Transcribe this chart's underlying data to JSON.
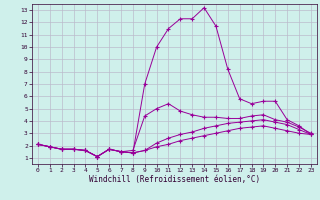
{
  "xlabel": "Windchill (Refroidissement éolien,°C)",
  "background_color": "#cff0eb",
  "line_color": "#990099",
  "grid_color": "#bbbbcc",
  "xlim": [
    -0.5,
    23.5
  ],
  "ylim": [
    0.5,
    13.5
  ],
  "xticks": [
    0,
    1,
    2,
    3,
    4,
    5,
    6,
    7,
    8,
    9,
    10,
    11,
    12,
    13,
    14,
    15,
    16,
    17,
    18,
    19,
    20,
    21,
    22,
    23
  ],
  "yticks": [
    1,
    2,
    3,
    4,
    5,
    6,
    7,
    8,
    9,
    10,
    11,
    12,
    13
  ],
  "curves": [
    {
      "x": [
        0,
        1,
        2,
        3,
        4,
        5,
        6,
        7,
        8,
        9,
        10,
        11,
        12,
        13,
        14,
        15,
        16,
        17,
        18,
        19,
        20,
        21,
        22,
        23
      ],
      "y": [
        2.1,
        1.9,
        1.7,
        1.7,
        1.6,
        1.1,
        1.7,
        1.5,
        1.4,
        7.0,
        10.0,
        11.5,
        12.3,
        12.3,
        13.2,
        11.7,
        8.2,
        5.8,
        5.4,
        5.6,
        5.6,
        4.1,
        3.6,
        2.9
      ]
    },
    {
      "x": [
        0,
        1,
        2,
        3,
        4,
        5,
        6,
        7,
        8,
        9,
        10,
        11,
        12,
        13,
        14,
        15,
        16,
        17,
        18,
        19,
        20,
        21,
        22,
        23
      ],
      "y": [
        2.1,
        1.9,
        1.7,
        1.7,
        1.6,
        1.1,
        1.7,
        1.5,
        1.6,
        4.4,
        5.0,
        5.4,
        4.8,
        4.5,
        4.3,
        4.3,
        4.2,
        4.2,
        4.4,
        4.5,
        4.1,
        3.9,
        3.5,
        3.0
      ]
    },
    {
      "x": [
        0,
        1,
        2,
        3,
        4,
        5,
        6,
        7,
        8,
        9,
        10,
        11,
        12,
        13,
        14,
        15,
        16,
        17,
        18,
        19,
        20,
        21,
        22,
        23
      ],
      "y": [
        2.1,
        1.9,
        1.7,
        1.7,
        1.6,
        1.1,
        1.7,
        1.5,
        1.4,
        1.6,
        2.2,
        2.6,
        2.9,
        3.1,
        3.4,
        3.6,
        3.8,
        3.9,
        4.0,
        4.1,
        3.9,
        3.7,
        3.3,
        2.9
      ]
    },
    {
      "x": [
        0,
        1,
        2,
        3,
        4,
        5,
        6,
        7,
        8,
        9,
        10,
        11,
        12,
        13,
        14,
        15,
        16,
        17,
        18,
        19,
        20,
        21,
        22,
        23
      ],
      "y": [
        2.1,
        1.9,
        1.7,
        1.7,
        1.6,
        1.1,
        1.7,
        1.5,
        1.4,
        1.6,
        1.9,
        2.1,
        2.4,
        2.6,
        2.8,
        3.0,
        3.2,
        3.4,
        3.5,
        3.6,
        3.4,
        3.2,
        3.0,
        2.9
      ]
    }
  ]
}
